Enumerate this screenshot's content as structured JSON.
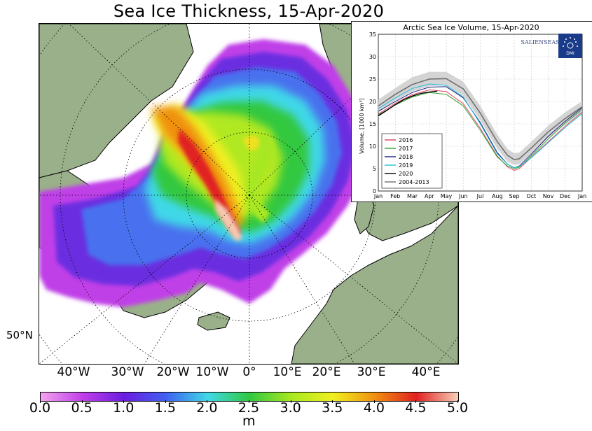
{
  "map": {
    "title": "Sea Ice Thickness, 15-Apr-2020",
    "lat_label": "50°N",
    "lon_labels": [
      "40°W",
      "30°W",
      "20°W",
      "10°W",
      "0°",
      "10°E",
      "20°E",
      "30°E",
      "40°E"
    ],
    "colorbar": {
      "ticks": [
        "0.0",
        "0.5",
        "1.0",
        "1.5",
        "2.0",
        "2.5",
        "3.0",
        "3.5",
        "4.0",
        "4.5",
        "5.0"
      ],
      "unit": "m",
      "colors": [
        "#f5a3f0",
        "#c040e8",
        "#6a1de0",
        "#4060f0",
        "#40d8e8",
        "#30c840",
        "#a8e820",
        "#f0f020",
        "#f09010",
        "#e02020",
        "#f8d0b8"
      ]
    },
    "land_color": "#9ab08a",
    "open_water_color": "#ffffff"
  },
  "inset": {
    "title": "Arctic Sea Ice Volume, 15-Apr-2020",
    "brand": "SALIENSEAS",
    "logo_text": "DMI",
    "ylabel": "Volume, [1000 km³]",
    "chart_data": {
      "type": "line",
      "title": "Arctic Sea Ice Volume, 15-Apr-2020",
      "ylabel": "Volume, [1000 km³]",
      "xlabel": "",
      "ylim": [
        0,
        35
      ],
      "yticks": [
        0,
        5,
        10,
        15,
        20,
        25,
        30,
        35
      ],
      "months": [
        "Jan",
        "Feb",
        "Mar",
        "Apr",
        "May",
        "Jun",
        "Jul",
        "Aug",
        "Sep",
        "Oct",
        "Nov",
        "Dec",
        "Jan"
      ],
      "legend_position": "bottom-left",
      "series": [
        {
          "name": "2016",
          "color": "#e0405a",
          "x": [
            0,
            1,
            2,
            3,
            4,
            5,
            6,
            7,
            7.6,
            8,
            8.3,
            9,
            10,
            11,
            12
          ],
          "values": [
            17.2,
            19.6,
            21.5,
            22.6,
            22.2,
            19.5,
            14.0,
            7.8,
            5.4,
            4.6,
            5.0,
            7.5,
            11.0,
            14.5,
            17.6
          ]
        },
        {
          "name": "2017",
          "color": "#30a030",
          "x": [
            0,
            1,
            2,
            3,
            4,
            5,
            6,
            7,
            7.6,
            8,
            8.3,
            9,
            10,
            11,
            12
          ],
          "values": [
            17.0,
            19.2,
            21.0,
            22.0,
            21.6,
            19.0,
            13.6,
            7.6,
            5.6,
            5.0,
            5.3,
            7.8,
            11.6,
            15.2,
            18.2
          ]
        },
        {
          "name": "2018",
          "color": "#1a2080",
          "x": [
            0,
            1,
            2,
            3,
            4,
            5,
            6,
            7,
            7.6,
            8,
            8.3,
            9,
            10,
            11,
            12
          ],
          "values": [
            17.8,
            20.0,
            22.0,
            23.2,
            23.3,
            20.8,
            15.3,
            8.6,
            6.0,
            5.2,
            5.6,
            8.2,
            12.2,
            15.6,
            18.6
          ]
        },
        {
          "name": "2019",
          "color": "#20c0d8",
          "x": [
            0,
            1,
            2,
            3,
            4,
            5,
            6,
            7,
            7.6,
            8,
            8.3,
            9,
            10,
            11,
            12
          ],
          "values": [
            18.4,
            20.8,
            22.9,
            23.9,
            23.6,
            21.0,
            15.0,
            8.3,
            6.0,
            5.2,
            5.5,
            7.4,
            10.8,
            14.2,
            17.3
          ]
        },
        {
          "name": "2020",
          "color": "#000000",
          "x": [
            0,
            0.5,
            1,
            1.5,
            2,
            2.5,
            3,
            3.47
          ],
          "values": [
            16.8,
            18.0,
            19.3,
            20.4,
            21.2,
            21.8,
            22.1,
            22.3
          ]
        },
        {
          "name": "2004-2013",
          "color": "#707070",
          "x": [
            0,
            1,
            2,
            3,
            4,
            5,
            6,
            7,
            7.6,
            8,
            8.3,
            9,
            10,
            11,
            12
          ],
          "values": [
            19.0,
            21.6,
            23.8,
            25.0,
            25.1,
            22.8,
            17.4,
            11.0,
            8.0,
            7.0,
            7.2,
            9.6,
            13.2,
            16.2,
            18.8
          ]
        }
      ],
      "band": {
        "x": [
          0,
          1,
          2,
          3,
          4,
          5,
          6,
          7,
          7.6,
          8,
          8.3,
          9,
          10,
          11,
          12
        ],
        "lower": [
          17.6,
          20.2,
          22.2,
          23.4,
          23.6,
          21.2,
          15.8,
          9.4,
          6.6,
          5.8,
          6.0,
          8.3,
          11.8,
          14.8,
          17.5
        ],
        "upper": [
          20.4,
          23.0,
          25.4,
          26.6,
          26.6,
          24.4,
          19.0,
          12.6,
          9.4,
          8.4,
          8.6,
          11.0,
          14.6,
          17.6,
          20.1
        ]
      }
    }
  }
}
